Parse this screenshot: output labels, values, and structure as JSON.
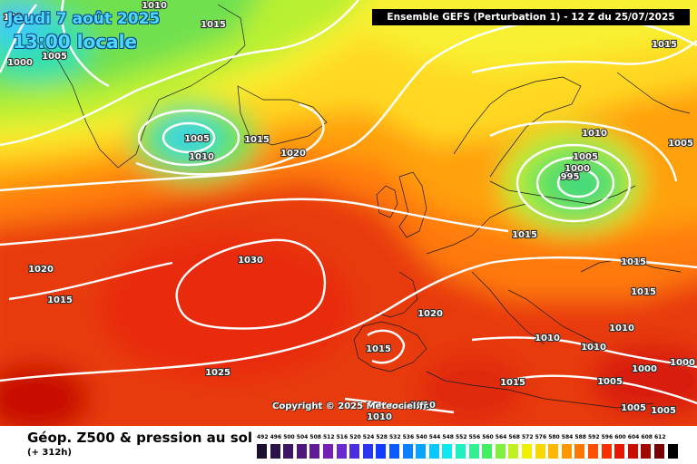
{
  "header": {
    "title": "Ensemble GEFS  (Perturbation 1)  -  12 Z du 25/07/2025",
    "valid_day": "Jeudi 7 août 2025",
    "valid_time": "13:00 locale"
  },
  "copyright": "Copyright © 2025 Meteociel.fr",
  "footer": {
    "variable": "Géop. Z500 & pression au sol",
    "lead": "(+ 312h)"
  },
  "isobar_labels": [
    {
      "text": "1010"
    },
    {
      "text": "1015"
    },
    {
      "text": "1005"
    },
    {
      "text": "1000"
    },
    {
      "text": "100"
    },
    {
      "text": "1005"
    },
    {
      "text": "1010"
    },
    {
      "text": "1015"
    },
    {
      "text": "1020"
    },
    {
      "text": "1015"
    },
    {
      "text": "1010"
    },
    {
      "text": "1005"
    },
    {
      "text": "1000"
    },
    {
      "text": "995"
    },
    {
      "text": "1005"
    },
    {
      "text": "1015"
    },
    {
      "text": "1015"
    },
    {
      "text": "1015"
    },
    {
      "text": "1020"
    },
    {
      "text": "1015"
    },
    {
      "text": "1030"
    },
    {
      "text": "1020"
    },
    {
      "text": "1015"
    },
    {
      "text": "1010"
    },
    {
      "text": "1010"
    },
    {
      "text": "1010"
    },
    {
      "text": "1025"
    },
    {
      "text": "1015"
    },
    {
      "text": "1000"
    },
    {
      "text": "1000"
    },
    {
      "text": "1005"
    },
    {
      "text": "1005"
    },
    {
      "text": "1010"
    },
    {
      "text": "1010"
    },
    {
      "text": "1005"
    }
  ],
  "legend_scale": [
    {
      "label": "492",
      "color": "#1a0f2e"
    },
    {
      "label": "496",
      "color": "#2b1248"
    },
    {
      "label": "500",
      "color": "#3b1463"
    },
    {
      "label": "504",
      "color": "#4d177e"
    },
    {
      "label": "508",
      "color": "#611b99"
    },
    {
      "label": "512",
      "color": "#7420b4"
    },
    {
      "label": "516",
      "color": "#6a28d0"
    },
    {
      "label": "520",
      "color": "#4a2ee0"
    },
    {
      "label": "524",
      "color": "#2a34ee"
    },
    {
      "label": "528",
      "color": "#0f3cff"
    },
    {
      "label": "532",
      "color": "#0a5cff"
    },
    {
      "label": "536",
      "color": "#0a80ff"
    },
    {
      "label": "540",
      "color": "#0aa4ff"
    },
    {
      "label": "544",
      "color": "#0ac8ff"
    },
    {
      "label": "548",
      "color": "#10e8f0"
    },
    {
      "label": "552",
      "color": "#20f0c0"
    },
    {
      "label": "556",
      "color": "#30f090"
    },
    {
      "label": "560",
      "color": "#40f060"
    },
    {
      "label": "564",
      "color": "#80f040"
    },
    {
      "label": "568",
      "color": "#c0f020"
    },
    {
      "label": "572",
      "color": "#f0f000"
    },
    {
      "label": "576",
      "color": "#f8d800"
    },
    {
      "label": "580",
      "color": "#ffb800"
    },
    {
      "label": "584",
      "color": "#ff9800"
    },
    {
      "label": "588",
      "color": "#ff7800"
    },
    {
      "label": "592",
      "color": "#ff5000"
    },
    {
      "label": "596",
      "color": "#f83000"
    },
    {
      "label": "600",
      "color": "#e81800"
    },
    {
      "label": "604",
      "color": "#c81000"
    },
    {
      "label": "608",
      "color": "#a00800"
    },
    {
      "label": "612",
      "color": "#780000"
    },
    {
      "label": "",
      "color": "#000000"
    }
  ],
  "colors": {
    "isobar": "#ffffff",
    "header_bg": "#000000",
    "date_text": "#4fd8ff"
  }
}
